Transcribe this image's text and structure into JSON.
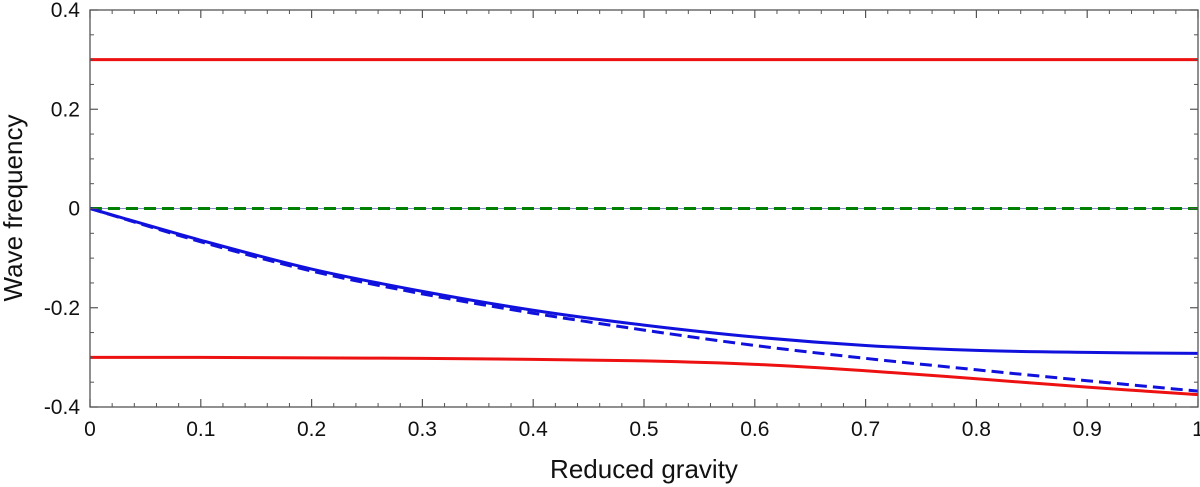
{
  "chart_data": {
    "type": "line",
    "title": "",
    "xlabel": "Reduced gravity",
    "ylabel": "Wave frequency",
    "xlim": [
      0,
      1
    ],
    "ylim": [
      -0.4,
      0.4
    ],
    "xticks": [
      0,
      0.1,
      0.2,
      0.3,
      0.4,
      0.5,
      0.6,
      0.7,
      0.8,
      0.9,
      1
    ],
    "xtick_labels": [
      "0",
      "0.1",
      "0.2",
      "0.3",
      "0.4",
      "0.5",
      "0.6",
      "0.7",
      "0.8",
      "0.9",
      "1"
    ],
    "yticks": [
      -0.4,
      -0.2,
      0,
      0.2,
      0.4
    ],
    "ytick_labels": [
      "-0.4",
      "-0.2",
      "0",
      "0.2",
      "0.4"
    ],
    "grid": false,
    "x": [
      0,
      0.1,
      0.2,
      0.3,
      0.4,
      0.5,
      0.6,
      0.7,
      0.8,
      0.9,
      1.0
    ],
    "series": [
      {
        "name": "red-upper",
        "color": "#ee1111",
        "style": "solid",
        "values": [
          0.3,
          0.3,
          0.3,
          0.3,
          0.3,
          0.3,
          0.3,
          0.3,
          0.3,
          0.3,
          0.3
        ]
      },
      {
        "name": "red-lower",
        "color": "#ee1111",
        "style": "solid",
        "values": [
          -0.3,
          -0.3,
          -0.301,
          -0.302,
          -0.304,
          -0.307,
          -0.314,
          -0.327,
          -0.343,
          -0.36,
          -0.375
        ]
      },
      {
        "name": "green-zero",
        "color": "#008000",
        "style": "dashed",
        "values": [
          0,
          0,
          0,
          0,
          0,
          0,
          0,
          0,
          0,
          0,
          0
        ]
      },
      {
        "name": "blue-solid",
        "color": "#1111dd",
        "style": "solid",
        "values": [
          0.0,
          -0.064,
          -0.122,
          -0.167,
          -0.205,
          -0.235,
          -0.259,
          -0.276,
          -0.286,
          -0.29,
          -0.292
        ]
      },
      {
        "name": "blue-dashed",
        "color": "#1111dd",
        "style": "dashed",
        "values": [
          0.0,
          -0.067,
          -0.126,
          -0.172,
          -0.211,
          -0.245,
          -0.276,
          -0.302,
          -0.325,
          -0.347,
          -0.368
        ]
      }
    ]
  }
}
